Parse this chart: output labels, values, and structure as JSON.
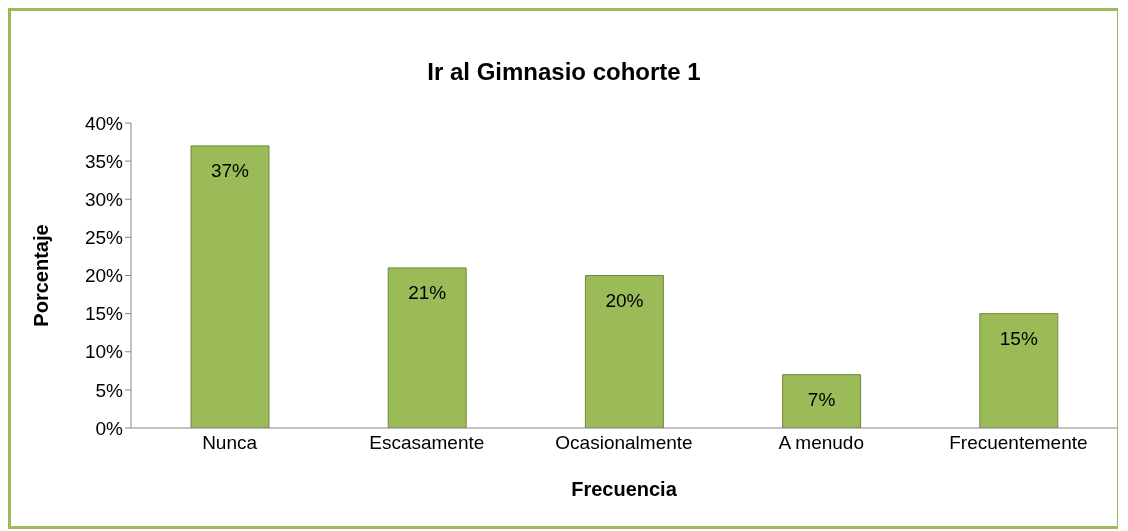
{
  "chart_data": {
    "type": "bar",
    "title": "Ir al Gimnasio cohorte 1",
    "xlabel": "Frecuencia",
    "ylabel": "Porcentaje",
    "categories": [
      "Nunca",
      "Escasamente",
      "Ocasionalmente",
      "A menudo",
      "Frecuentemente"
    ],
    "values": [
      37,
      21,
      20,
      7,
      15
    ],
    "value_labels": [
      "37%",
      "21%",
      "20%",
      "7%",
      "15%"
    ],
    "color": "#9bbb59",
    "ylim": [
      0,
      40
    ],
    "yticks": [
      {
        "value": 0,
        "label": "0%"
      },
      {
        "value": 5,
        "label": "5%"
      },
      {
        "value": 10,
        "label": "10%"
      },
      {
        "value": 15,
        "label": "15%"
      },
      {
        "value": 20,
        "label": "20%"
      },
      {
        "value": 25,
        "label": "25%"
      },
      {
        "value": 30,
        "label": "30%"
      },
      {
        "value": 35,
        "label": "35%"
      },
      {
        "value": 40,
        "label": "40%"
      }
    ],
    "grid": false,
    "legend": false
  }
}
